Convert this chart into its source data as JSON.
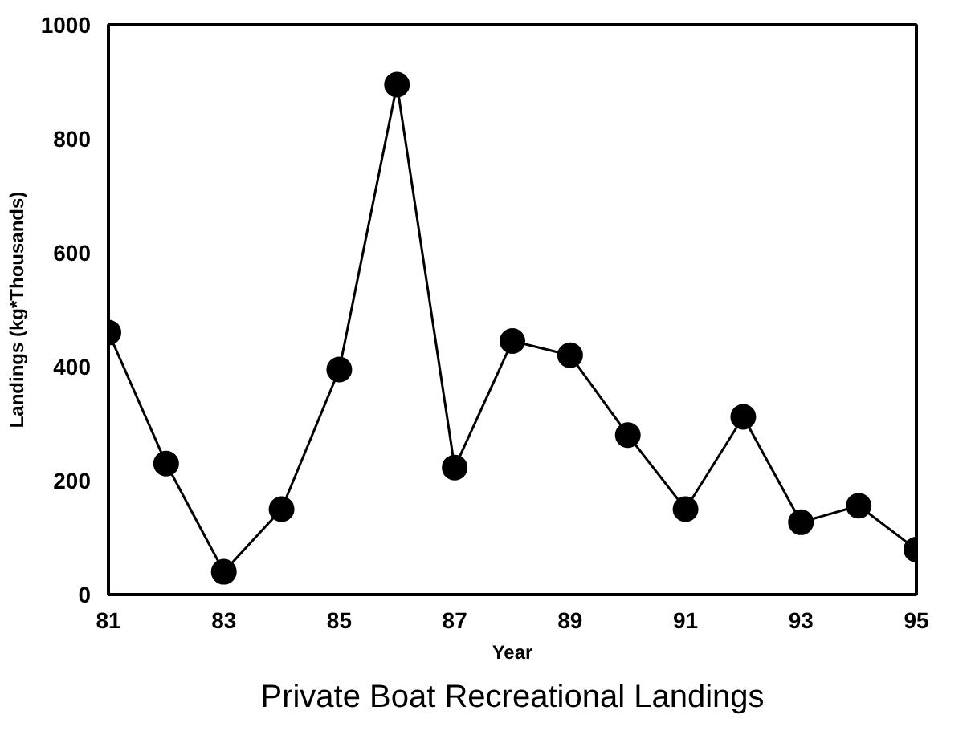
{
  "chart_data": {
    "type": "line",
    "title": "Private Boat Recreational Landings",
    "xlabel": "Year",
    "ylabel": "Landings (kg*Thousands)",
    "x": [
      81,
      82,
      83,
      84,
      85,
      86,
      87,
      88,
      89,
      90,
      91,
      92,
      93,
      94,
      95
    ],
    "series": [
      {
        "color": "#000000",
        "values": [
          460,
          230,
          40,
          150,
          395,
          895,
          223,
          445,
          420,
          280,
          150,
          312,
          127,
          156,
          79
        ]
      }
    ],
    "xlim": [
      81,
      95
    ],
    "xticks": [
      81,
      83,
      85,
      87,
      89,
      91,
      93,
      95
    ],
    "ylim": [
      0,
      1000
    ],
    "yticks": [
      0,
      200,
      400,
      600,
      800,
      1000
    ],
    "grid": false,
    "marker": "circle",
    "line_style": "solid"
  }
}
